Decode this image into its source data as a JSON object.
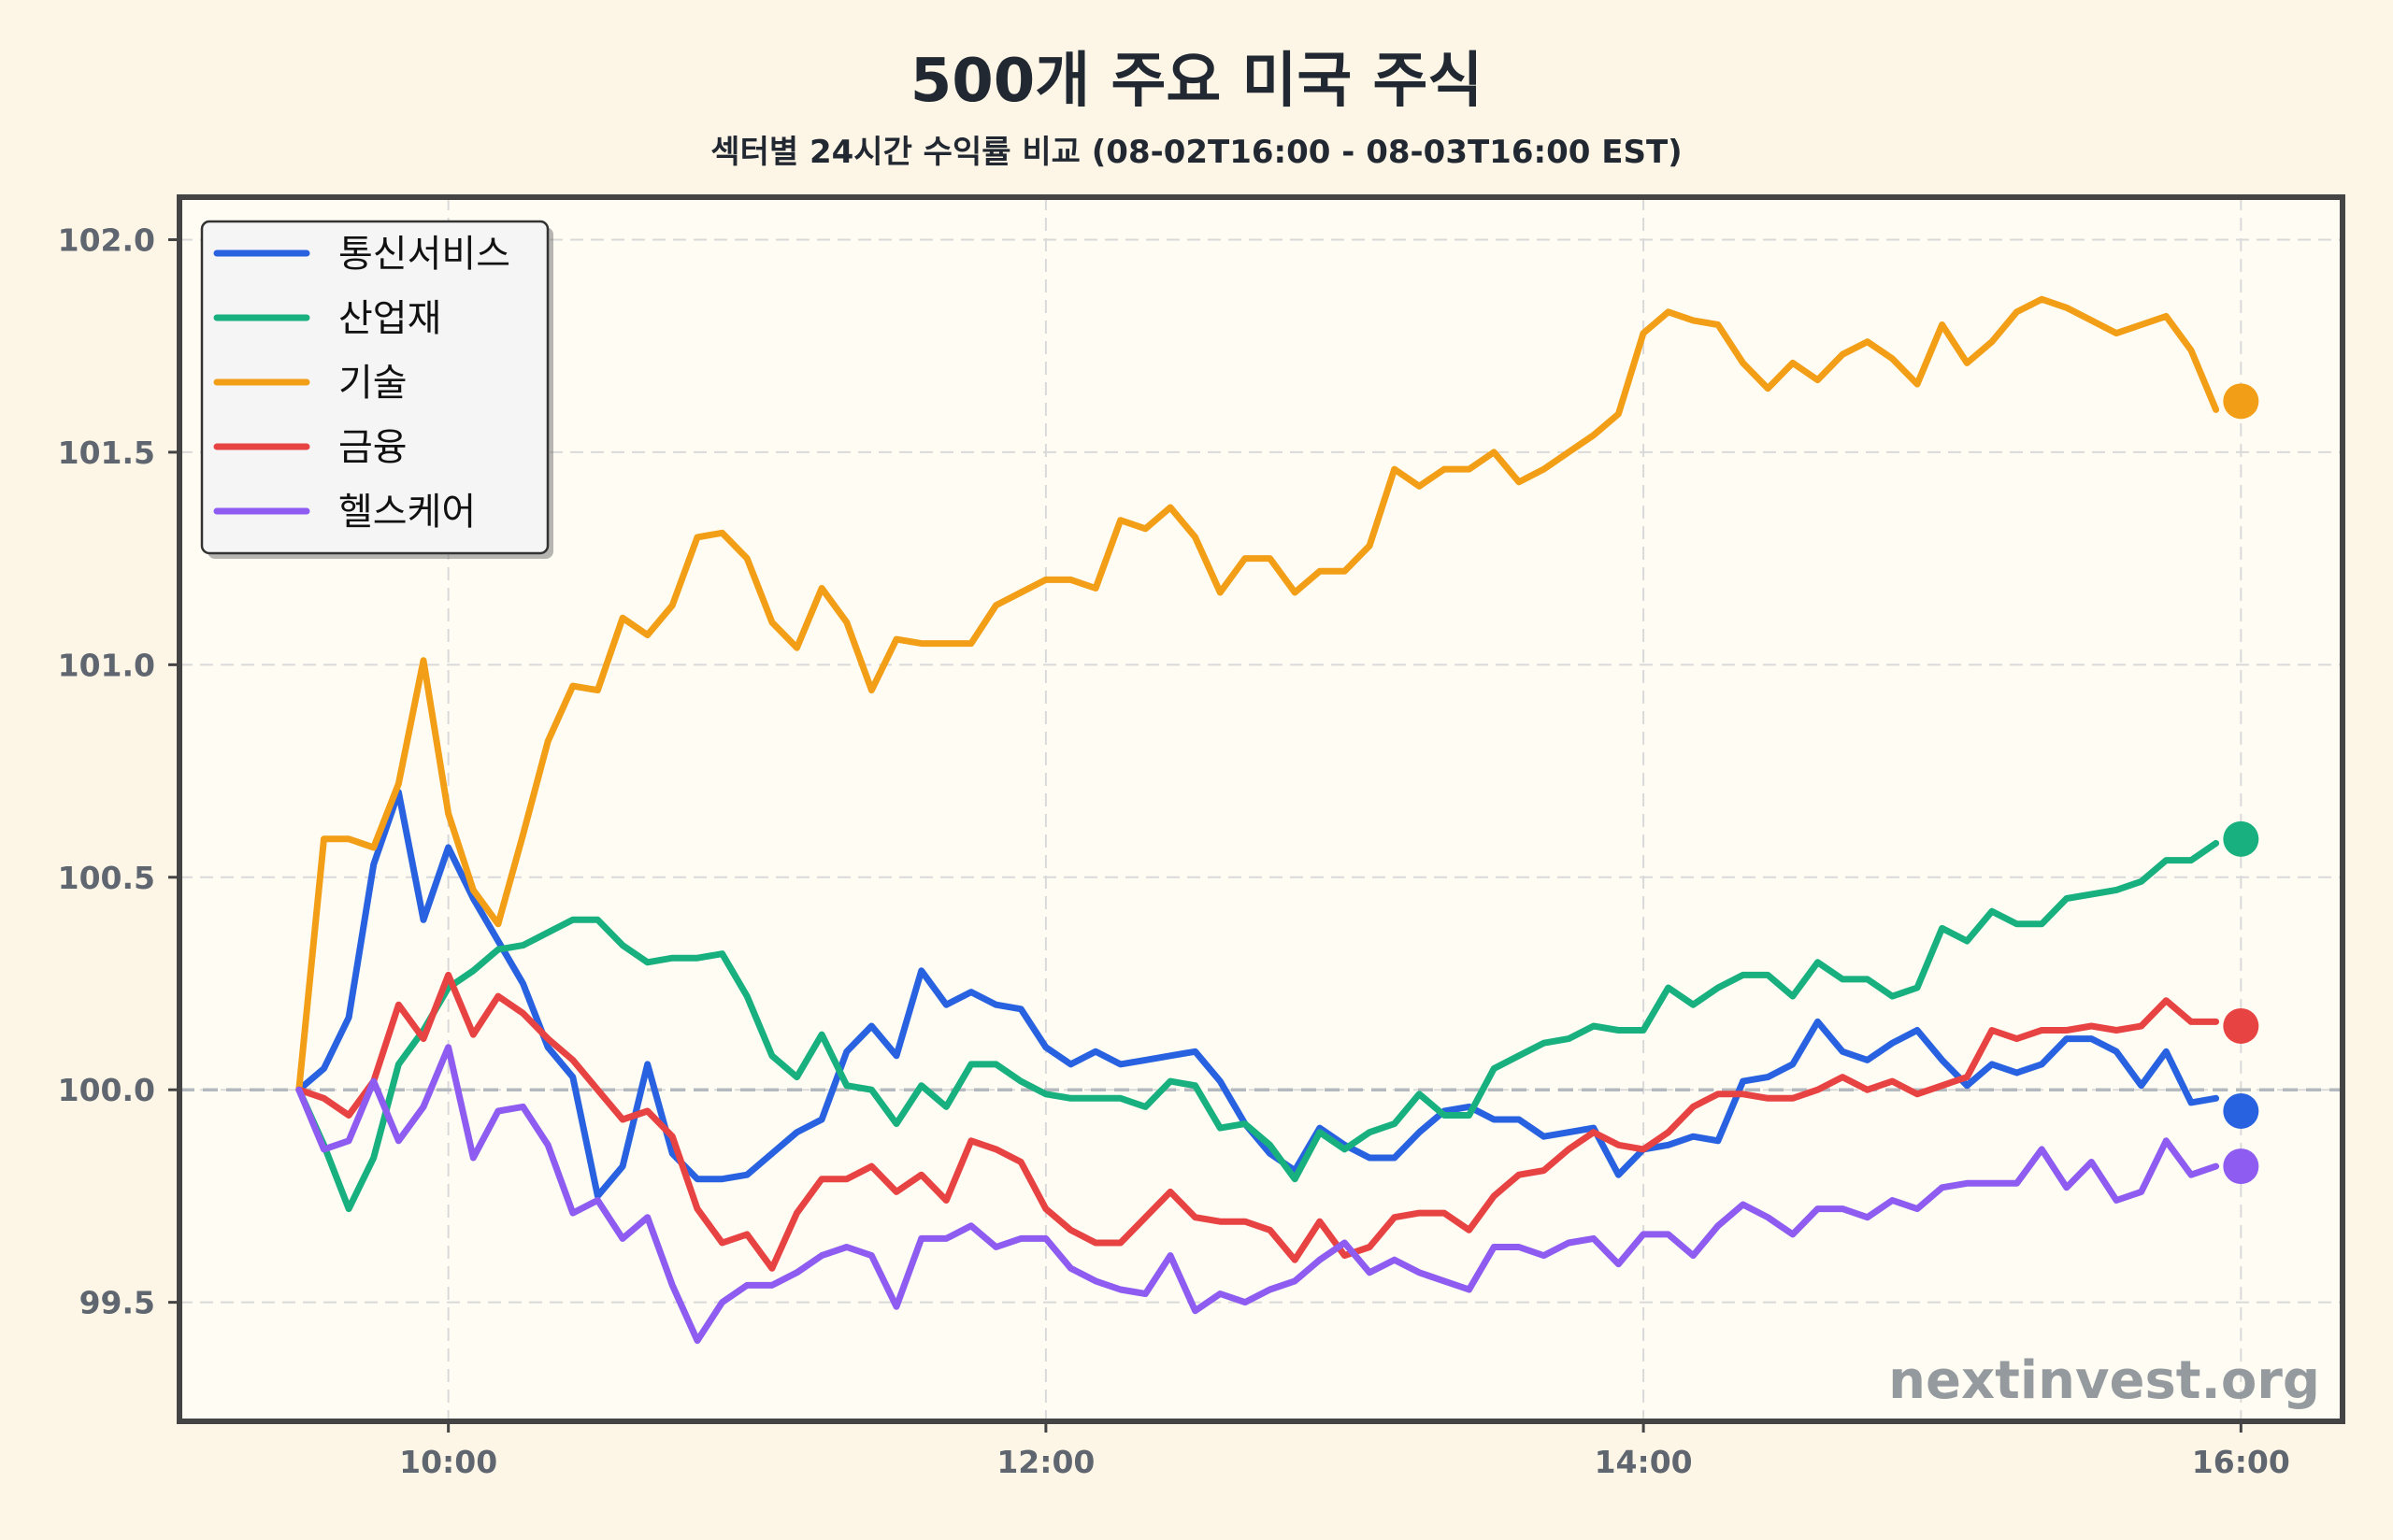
{
  "chart_data": {
    "type": "line",
    "title": "500개 주요 미국 주식",
    "subtitle": "섹터별 24시간 수익률 비교 (08-02T16:00 - 08-03T16:00 EST)",
    "xlabel": "",
    "ylabel": "",
    "x_ticks": [
      "10:00",
      "12:00",
      "14:00",
      "16:00"
    ],
    "x_tick_values": [
      10,
      12,
      14,
      16
    ],
    "xlim": [
      9.1,
      16.34
    ],
    "y_ticks": [
      "99.5",
      "100.0",
      "100.5",
      "101.0",
      "101.5",
      "102.0"
    ],
    "y_tick_values": [
      99.5,
      100.0,
      100.5,
      101.0,
      101.5,
      102.0
    ],
    "ylim": [
      99.22,
      102.1
    ],
    "grid": true,
    "legend_position": "top-left",
    "watermark": "nextinvest.org",
    "reference_line": 100.0,
    "x_start": 9.5,
    "x_step": 0.08333,
    "series": [
      {
        "name": "통신서비스",
        "color": "#2962e0",
        "values": [
          100.0,
          100.05,
          100.17,
          100.53,
          100.7,
          100.4,
          100.57,
          100.45,
          100.35,
          100.25,
          100.1,
          100.03,
          99.75,
          99.82,
          100.06,
          99.85,
          99.79,
          99.79,
          99.8,
          99.85,
          99.9,
          99.93,
          100.09,
          100.15,
          100.08,
          100.28,
          100.2,
          100.23,
          100.2,
          100.19,
          100.1,
          100.06,
          100.09,
          100.06,
          100.07,
          100.08,
          100.09,
          100.02,
          99.92,
          99.85,
          99.81,
          99.91,
          99.87,
          99.84,
          99.84,
          99.9,
          99.95,
          99.96,
          99.93,
          99.93,
          99.89,
          99.9,
          99.91,
          99.8,
          99.86,
          99.87,
          99.89,
          99.88,
          100.02,
          100.03,
          100.06,
          100.16,
          100.09,
          100.07,
          100.11,
          100.14,
          100.07,
          100.01,
          100.06,
          100.04,
          100.06,
          100.12,
          100.12,
          100.09,
          100.01,
          100.09,
          99.97,
          99.98
        ]
      },
      {
        "name": "산업재",
        "color": "#19b07f",
        "values": [
          100.0,
          99.87,
          99.72,
          99.84,
          100.06,
          100.14,
          100.24,
          100.28,
          100.33,
          100.34,
          100.37,
          100.4,
          100.4,
          100.34,
          100.3,
          100.31,
          100.31,
          100.32,
          100.22,
          100.08,
          100.03,
          100.13,
          100.01,
          100.0,
          99.92,
          100.01,
          99.96,
          100.06,
          100.06,
          100.02,
          99.99,
          99.98,
          99.98,
          99.98,
          99.96,
          100.02,
          100.01,
          99.91,
          99.92,
          99.87,
          99.79,
          99.9,
          99.86,
          99.9,
          99.92,
          99.99,
          99.94,
          99.94,
          100.05,
          100.08,
          100.11,
          100.12,
          100.15,
          100.14,
          100.14,
          100.24,
          100.2,
          100.24,
          100.27,
          100.27,
          100.22,
          100.3,
          100.26,
          100.26,
          100.22,
          100.24,
          100.38,
          100.35,
          100.42,
          100.39,
          100.39,
          100.45,
          100.46,
          100.47,
          100.49,
          100.54,
          100.54,
          100.58
        ]
      },
      {
        "name": "기술",
        "color": "#f29e17",
        "values": [
          100.0,
          100.59,
          100.59,
          100.57,
          100.72,
          101.01,
          100.65,
          100.47,
          100.39,
          100.6,
          100.82,
          100.95,
          100.94,
          101.11,
          101.07,
          101.14,
          101.3,
          101.31,
          101.25,
          101.1,
          101.04,
          101.18,
          101.1,
          100.94,
          101.06,
          101.05,
          101.05,
          101.05,
          101.14,
          101.17,
          101.2,
          101.2,
          101.18,
          101.34,
          101.32,
          101.37,
          101.3,
          101.17,
          101.25,
          101.25,
          101.17,
          101.22,
          101.22,
          101.28,
          101.46,
          101.42,
          101.46,
          101.46,
          101.5,
          101.43,
          101.46,
          101.5,
          101.54,
          101.59,
          101.78,
          101.83,
          101.81,
          101.8,
          101.71,
          101.65,
          101.71,
          101.67,
          101.73,
          101.76,
          101.72,
          101.66,
          101.8,
          101.71,
          101.76,
          101.83,
          101.86,
          101.84,
          101.81,
          101.78,
          101.8,
          101.82,
          101.74,
          101.6
        ]
      },
      {
        "name": "금융",
        "color": "#e84343",
        "values": [
          100.0,
          99.98,
          99.94,
          100.02,
          100.2,
          100.12,
          100.27,
          100.13,
          100.22,
          100.18,
          100.12,
          100.07,
          100.0,
          99.93,
          99.95,
          99.89,
          99.72,
          99.64,
          99.66,
          99.58,
          99.71,
          99.79,
          99.79,
          99.82,
          99.76,
          99.8,
          99.74,
          99.88,
          99.86,
          99.83,
          99.72,
          99.67,
          99.64,
          99.64,
          99.7,
          99.76,
          99.7,
          99.69,
          99.69,
          99.67,
          99.6,
          99.69,
          99.61,
          99.63,
          99.7,
          99.71,
          99.71,
          99.67,
          99.75,
          99.8,
          99.81,
          99.86,
          99.9,
          99.87,
          99.86,
          99.9,
          99.96,
          99.99,
          99.99,
          99.98,
          99.98,
          100.0,
          100.03,
          100.0,
          100.02,
          99.99,
          100.01,
          100.03,
          100.14,
          100.12,
          100.14,
          100.14,
          100.15,
          100.14,
          100.15,
          100.21,
          100.16,
          100.16
        ]
      },
      {
        "name": "헬스케어",
        "color": "#8e5cf0",
        "values": [
          100.0,
          99.86,
          99.88,
          100.02,
          99.88,
          99.96,
          100.1,
          99.84,
          99.95,
          99.96,
          99.87,
          99.71,
          99.74,
          99.65,
          99.7,
          99.54,
          99.41,
          99.5,
          99.54,
          99.54,
          99.57,
          99.61,
          99.63,
          99.61,
          99.49,
          99.65,
          99.65,
          99.68,
          99.63,
          99.65,
          99.65,
          99.58,
          99.55,
          99.53,
          99.52,
          99.61,
          99.48,
          99.52,
          99.5,
          99.53,
          99.55,
          99.6,
          99.64,
          99.57,
          99.6,
          99.57,
          99.55,
          99.53,
          99.63,
          99.63,
          99.61,
          99.64,
          99.65,
          99.59,
          99.66,
          99.66,
          99.61,
          99.68,
          99.73,
          99.7,
          99.66,
          99.72,
          99.72,
          99.7,
          99.74,
          99.72,
          99.77,
          99.78,
          99.78,
          99.78,
          99.86,
          99.77,
          99.83,
          99.74,
          99.76,
          99.88,
          99.8,
          99.82
        ]
      }
    ],
    "end_markers": [
      101.62,
      100.59,
      100.15,
      99.95,
      99.82
    ]
  }
}
